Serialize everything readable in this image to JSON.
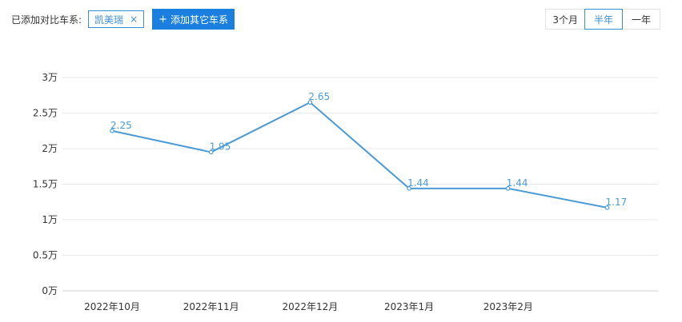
{
  "toolbar": {
    "compare_label": "已添加对比车系:",
    "tag_label": "凯美瑞",
    "tag_close_glyph": "×",
    "add_button_plus": "+",
    "add_button_label": "添加其它车系"
  },
  "range_buttons": [
    {
      "label": "3个月",
      "active": false
    },
    {
      "label": "半年",
      "active": true
    },
    {
      "label": "一年",
      "active": false
    }
  ],
  "colors": {
    "accent": "#3b8fd6",
    "line": "#4a9bd6",
    "grid": "#e8e8e8"
  },
  "chart_data": {
    "type": "line",
    "categories": [
      "2022年10月",
      "2022年11月",
      "2022年12月",
      "2023年1月",
      "2023年2月",
      ""
    ],
    "y_ticks": [
      "0万",
      "0.5万",
      "1万",
      "1.5万",
      "2万",
      "2.5万",
      "3万"
    ],
    "ylim": [
      0,
      3
    ],
    "grid": true,
    "series": [
      {
        "values": [
          2.25,
          1.95,
          2.65,
          1.44,
          1.44,
          1.17
        ],
        "labels": [
          "2.25",
          "1.95",
          "2.65",
          "1.44",
          "1.44",
          "1.17"
        ]
      }
    ]
  }
}
